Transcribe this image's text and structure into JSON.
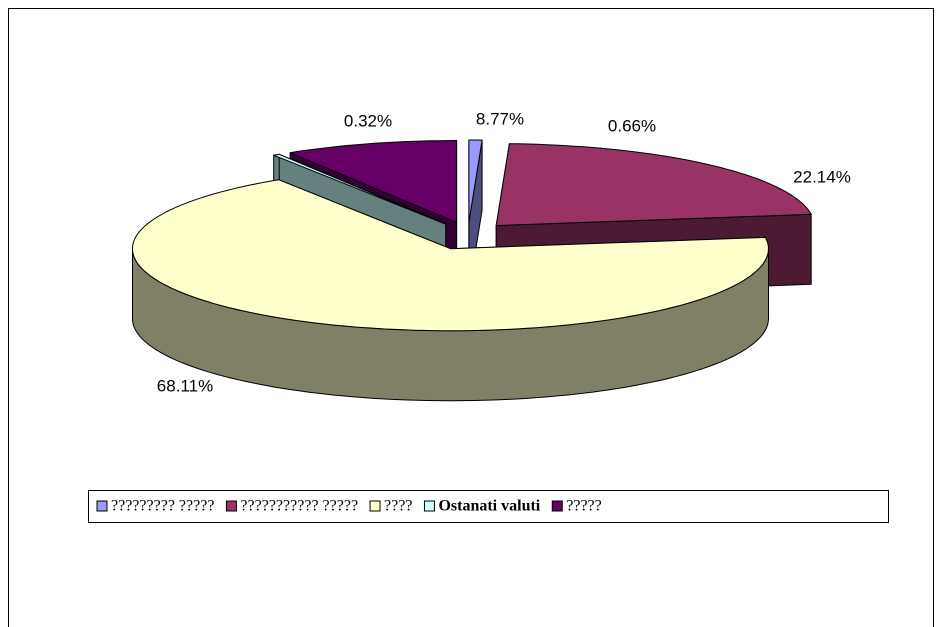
{
  "chart_data": {
    "type": "pie3d",
    "categories": [
      "????????? ?????",
      "??????????? ?????",
      "????",
      "Ostanati valuti",
      "?????"
    ],
    "values": [
      0.66,
      22.14,
      68.11,
      0.32,
      8.77
    ],
    "value_labels": [
      "0.66%",
      "22.14%",
      "68.11%",
      "0.32%",
      "8.77%"
    ],
    "colors": [
      "#9999ff",
      "#993366",
      "#ffffcc",
      "#ccffff",
      "#660066"
    ],
    "legend": "bottom"
  }
}
